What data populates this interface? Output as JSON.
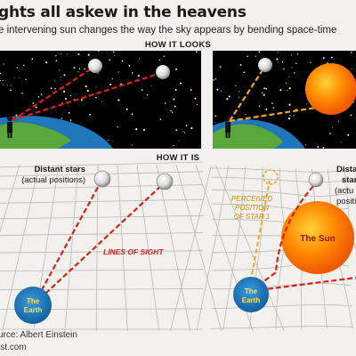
{
  "header": {
    "title": "ghts all askew in the heavens",
    "subtitle": "e intervening sun changes the way the sky appears by bending space-time"
  },
  "sections": {
    "top": "HOW IT LOOKS",
    "bottom": "HOW IT IS"
  },
  "labels": {
    "distant_stars": "Distant stars",
    "actual_positions": "(actual positions)",
    "lines_of_sight": "LINES OF SIGHT",
    "the": "The",
    "earth": "Earth",
    "the_sun": "The Sun",
    "perceived_line1": "PERCEIVED",
    "perceived_line2": "POSITION",
    "perceived_line3": "OF STAR 1",
    "distant_right_1": "Distan",
    "distant_right_2": "star",
    "distant_right_3": "(actu",
    "distant_right_4": "positi"
  },
  "footer": {
    "source": "urce: Albert Einstein",
    "site": "ist.com"
  },
  "colors": {
    "sky": "#000000",
    "earth_blue": "#1f76b8",
    "earth_green": "#5aa83b",
    "sun_orange": "#ff6a00",
    "sun_yellow": "#ffcf2e",
    "line_red": "#d6221c",
    "line_orange": "#f0a81c",
    "grid": "#b9b9b9",
    "background": "#f3f1ed"
  }
}
